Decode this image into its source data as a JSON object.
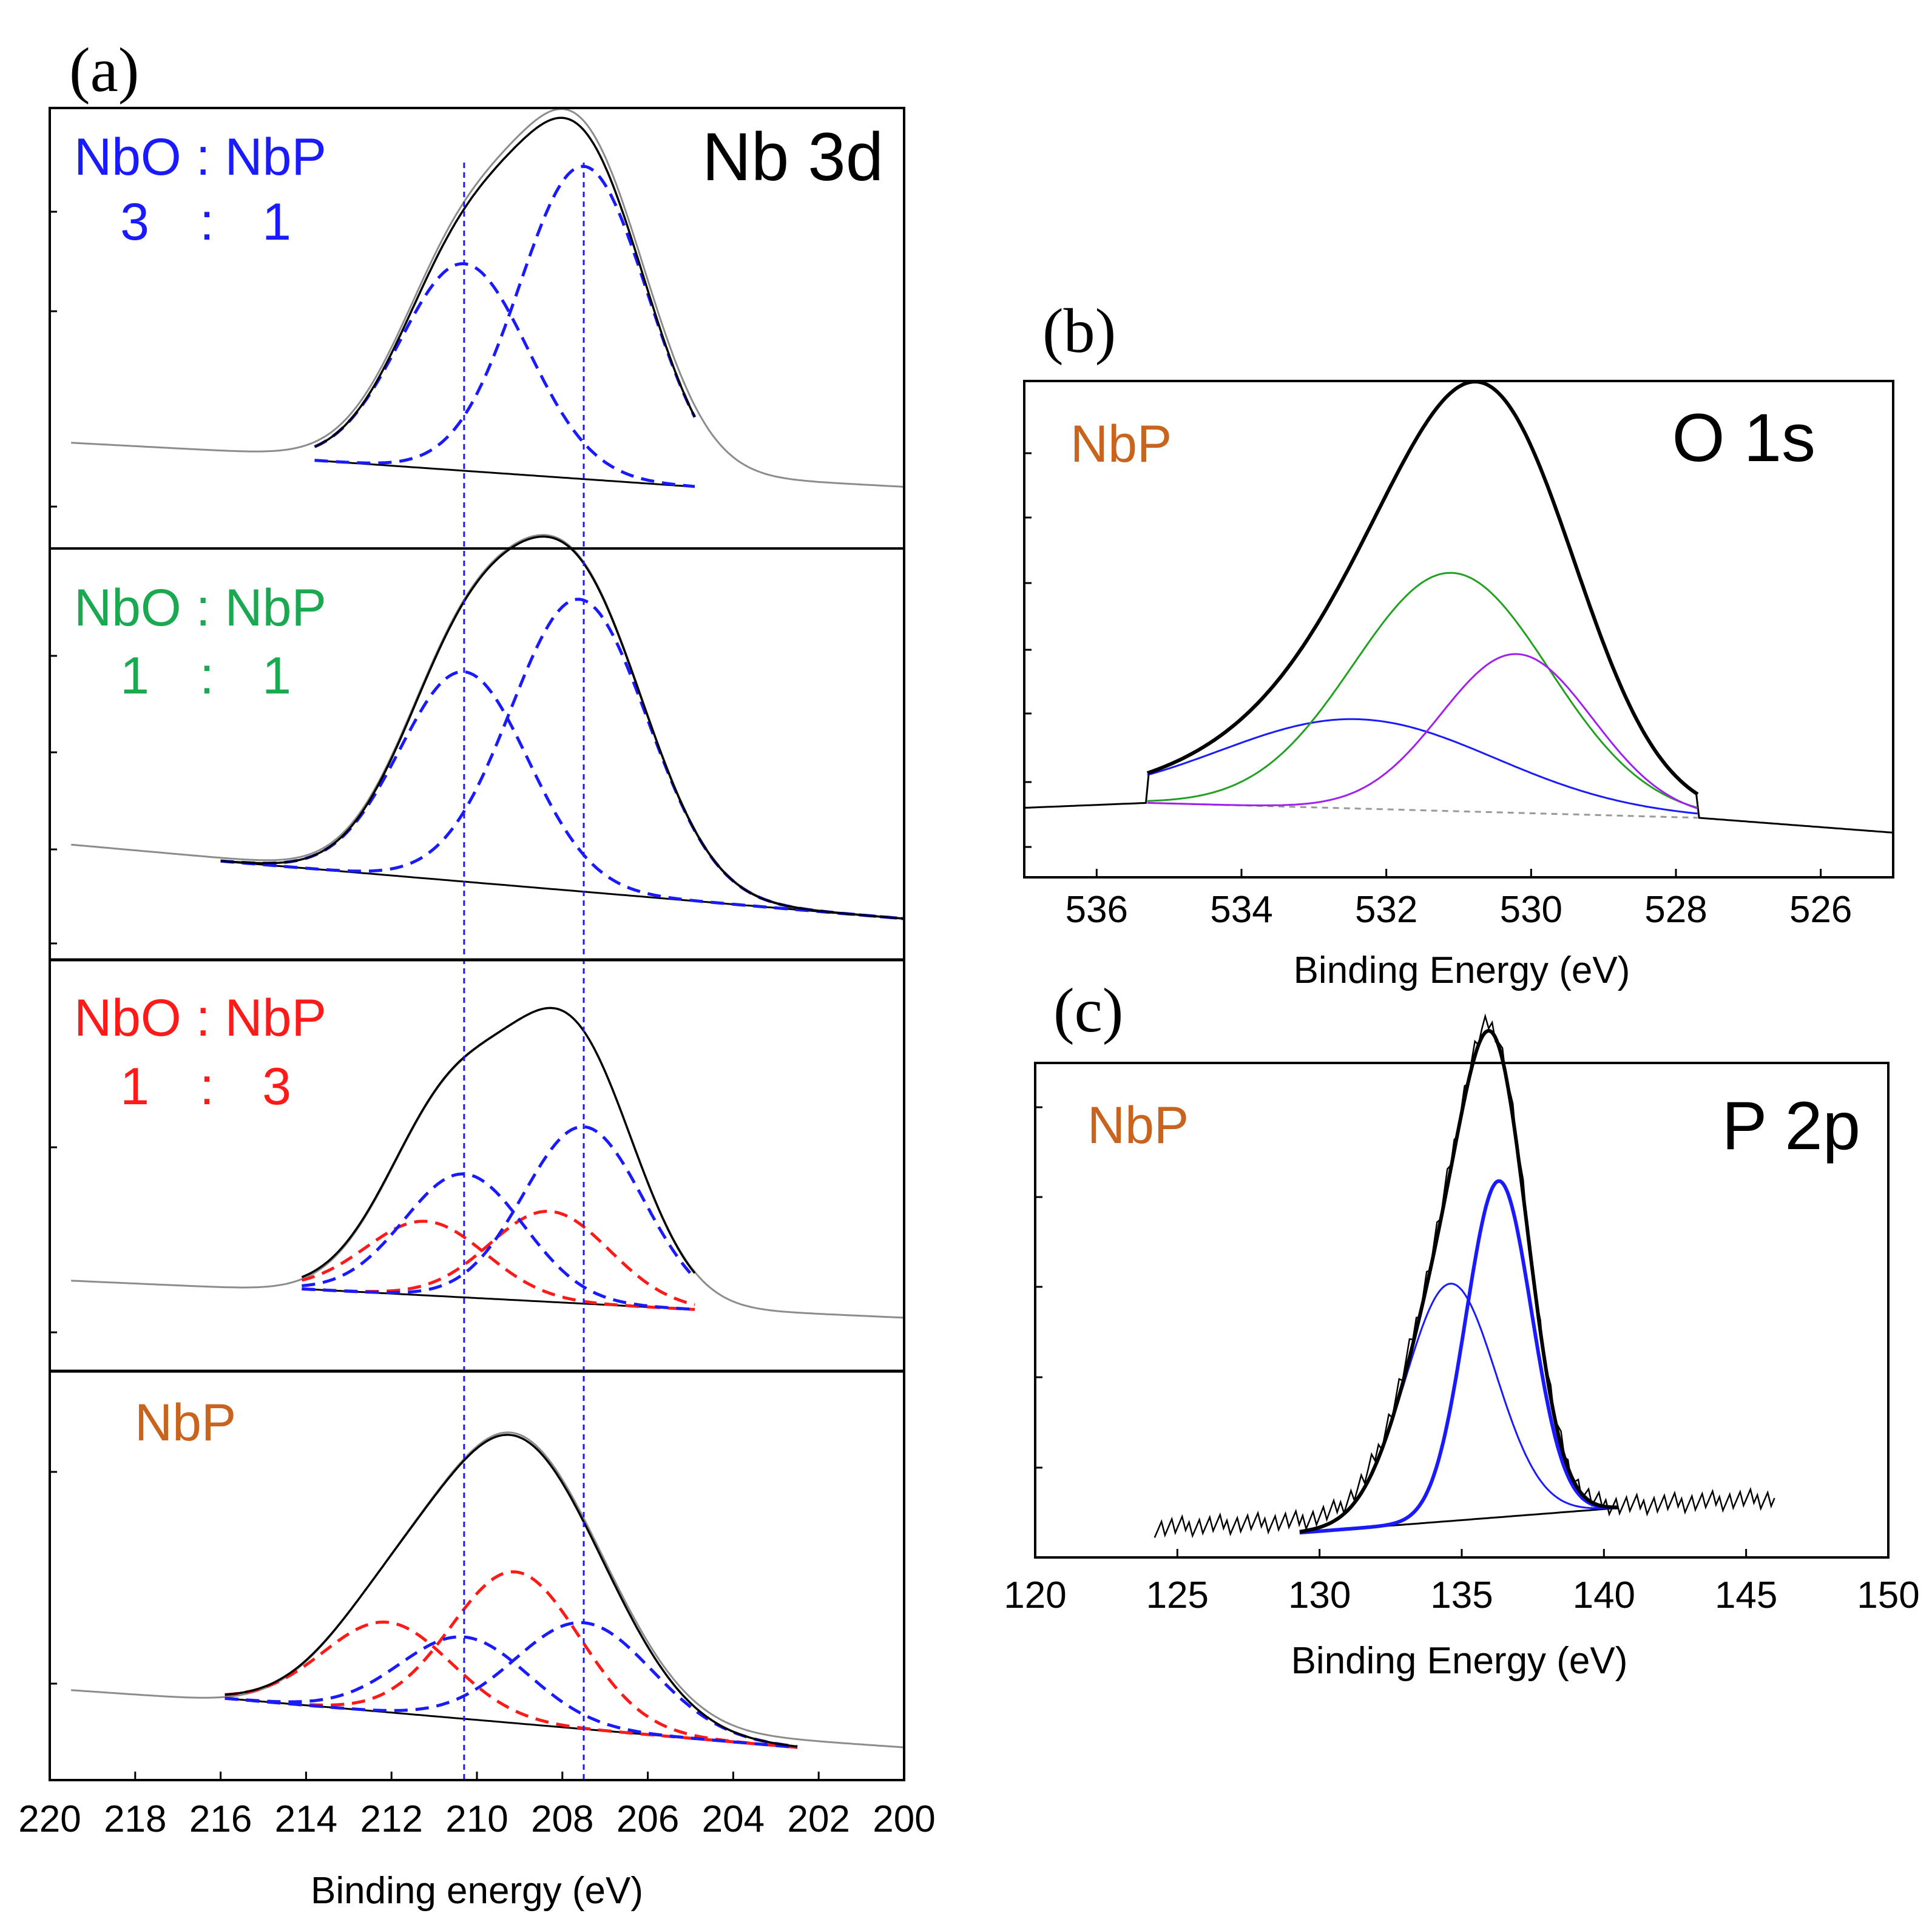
{
  "colors": {
    "blue": "#1a1aff",
    "green": "#1aa850",
    "red": "#ff1a1a",
    "orange": "#c8641e",
    "black": "#000000",
    "gray": "#8c8c8c",
    "purple": "#a020f0",
    "fitgreen": "#22a022"
  },
  "chart_data": [
    {
      "panel_label": "(a)",
      "type": "line",
      "title": "Nb 3d",
      "xlabel": "Binding energy (eV)",
      "ylabel": "",
      "xlim": [
        220,
        200
      ],
      "x_ticks": [
        "220",
        "218",
        "216",
        "214",
        "212",
        "210",
        "208",
        "206",
        "204",
        "202",
        "200"
      ],
      "reference_lines_eV": [
        210.3,
        207.5
      ],
      "subpanels": [
        {
          "label_top": "NbO : NbP",
          "ratio_left": "3",
          "ratio_sep": ":",
          "ratio_right": "1",
          "label_color": "blue",
          "background_linear": {
            "x": [
              219.5,
              200
            ],
            "y": [
              0.24,
              0.14
            ]
          },
          "shirley": {
            "x": [
              213.8,
              204.9
            ],
            "y": [
              0.2,
              0.14
            ]
          },
          "peaks": [
            {
              "center": 210.3,
              "height": 0.47,
              "width": 1.5,
              "color": "blue"
            },
            {
              "center": 207.5,
              "height": 0.71,
              "width": 1.5,
              "color": "blue"
            }
          ]
        },
        {
          "label_top": "NbO : NbP",
          "ratio_left": "1",
          "ratio_sep": ":",
          "ratio_right": "1",
          "label_color": "green",
          "background_linear": {
            "x": [
              219.5,
              200
            ],
            "y": [
              0.28,
              0.1
            ]
          },
          "shirley": {
            "x": [
              216,
              200
            ],
            "y": [
              0.24,
              0.1
            ]
          },
          "peaks": [
            {
              "center": 210.3,
              "height": 0.51,
              "width": 1.5,
              "color": "blue"
            },
            {
              "center": 207.6,
              "height": 0.71,
              "width": 1.6,
              "color": "blue"
            }
          ]
        },
        {
          "label_top": "NbO : NbP",
          "ratio_left": "1",
          "ratio_sep": ":",
          "ratio_right": "3",
          "label_color": "red",
          "background_linear": {
            "x": [
              219.5,
              200
            ],
            "y": [
              0.22,
              0.13
            ]
          },
          "shirley": {
            "x": [
              214.1,
              204.9
            ],
            "y": [
              0.2,
              0.15
            ]
          },
          "peaks": [
            {
              "center": 211.2,
              "height": 0.18,
              "width": 1.4,
              "color": "red"
            },
            {
              "center": 208.3,
              "height": 0.22,
              "width": 1.4,
              "color": "red"
            },
            {
              "center": 210.3,
              "height": 0.3,
              "width": 1.4,
              "color": "blue"
            },
            {
              "center": 207.5,
              "height": 0.43,
              "width": 1.4,
              "color": "blue"
            }
          ]
        },
        {
          "label_top": "NbP",
          "ratio_left": "",
          "ratio_sep": "",
          "ratio_right": "",
          "label_color": "orange",
          "background_linear": {
            "x": [
              219.5,
              200
            ],
            "y": [
              0.22,
              0.08
            ]
          },
          "shirley": {
            "x": [
              215.9,
              202.5
            ],
            "y": [
              0.2,
              0.08
            ]
          },
          "peaks": [
            {
              "center": 212.1,
              "height": 0.22,
              "width": 1.5,
              "color": "red"
            },
            {
              "center": 209.1,
              "height": 0.37,
              "width": 1.5,
              "color": "red"
            },
            {
              "center": 210.3,
              "height": 0.2,
              "width": 1.5,
              "color": "blue"
            },
            {
              "center": 207.5,
              "height": 0.26,
              "width": 1.6,
              "color": "blue"
            }
          ]
        }
      ]
    },
    {
      "panel_label": "(b)",
      "type": "line",
      "title": "O 1s",
      "sample_label": "NbP",
      "xlabel": "Binding Energy (eV)",
      "ylabel": "",
      "xlim": [
        537,
        525
      ],
      "x_ticks": [
        "536",
        "534",
        "532",
        "530",
        "528",
        "526"
      ],
      "background": {
        "x": [
          537,
          535.3,
          527.7,
          525
        ],
        "y": [
          0.14,
          0.15,
          0.12,
          0.09
        ]
      },
      "baseline_dashed": {
        "x": [
          535.3,
          527.7
        ],
        "y": [
          0.15,
          0.12
        ]
      },
      "components": [
        {
          "center": 532.4,
          "height": 0.18,
          "width": 1.9,
          "color": "blue"
        },
        {
          "center": 531.1,
          "height": 0.48,
          "width": 1.35,
          "color": "fitgreen"
        },
        {
          "center": 530.2,
          "height": 0.32,
          "width": 1.05,
          "color": "purple"
        }
      ]
    },
    {
      "panel_label": "(c)",
      "type": "line",
      "title": "P 2p",
      "sample_label": "NbP",
      "xlabel": "Binding Energy (eV)",
      "ylabel": "",
      "xlim": [
        120,
        150
      ],
      "x_ticks": [
        "120",
        "125",
        "130",
        "135",
        "140",
        "145",
        "150"
      ],
      "noisy_background": {
        "x_range": [
          124.2,
          146
        ],
        "y_start": 0.06,
        "y_end": 0.12
      },
      "shirley": {
        "x": [
          129.3,
          140.5
        ],
        "y": [
          0.05,
          0.1
        ]
      },
      "components": [
        {
          "center": 134.6,
          "height": 0.48,
          "width": 1.6,
          "color": "blue",
          "weight": "thin"
        },
        {
          "center": 136.3,
          "height": 0.68,
          "width": 1.15,
          "color": "blue",
          "weight": "thick"
        }
      ]
    }
  ]
}
